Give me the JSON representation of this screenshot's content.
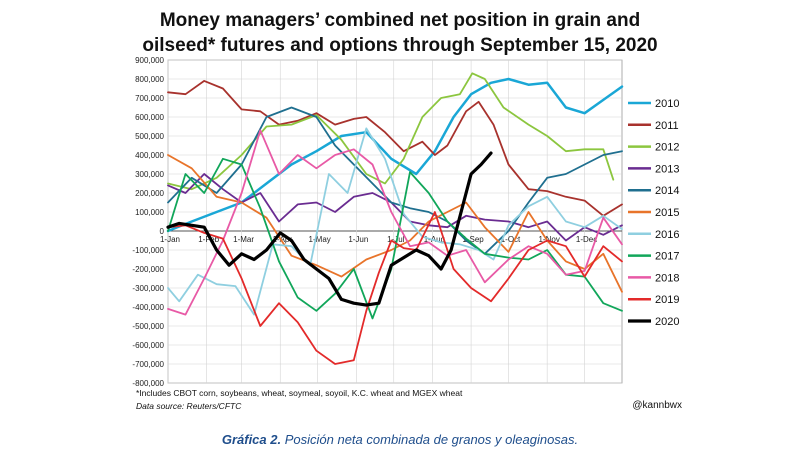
{
  "chart_data": {
    "type": "line",
    "title": [
      "Money managers’ combined net position in grain and",
      "oilseed* futures and options through September 15, 2020"
    ],
    "xlabel": "",
    "ylabel": "",
    "x_ticks": [
      "1-Jan",
      "1-Feb",
      "1-Mar",
      "1-Apr",
      "1-May",
      "1-Jun",
      "1-Jul",
      "1-Aug",
      "1-Sep",
      "1-Oct",
      "1-Nov",
      "1-Dec"
    ],
    "x_tick_days": [
      1,
      32,
      60,
      91,
      121,
      152,
      182,
      213,
      244,
      274,
      305,
      335
    ],
    "y_ticks": [
      "900,000",
      "800,000",
      "700,000",
      "600,000",
      "500,000",
      "400,000",
      "300,000",
      "200,000",
      "100,000",
      "0",
      "-100,000",
      "-200,000",
      "-300,000",
      "-400,000",
      "-500,000",
      "-600,000",
      "-700,000",
      "-800,000"
    ],
    "ylim": [
      -800000,
      900000
    ],
    "xlim": [
      1,
      365
    ],
    "legend_position": "right",
    "series": [
      {
        "name": "2010",
        "color": "#1aa7d6",
        "width": 2.5,
        "x": [
          1,
          20,
          40,
          60,
          80,
          100,
          120,
          140,
          160,
          180,
          200,
          215,
          230,
          244,
          260,
          274,
          290,
          305,
          320,
          335,
          350,
          365
        ],
        "y": [
          0,
          50000,
          100000,
          150000,
          250000,
          350000,
          420000,
          500000,
          520000,
          380000,
          300000,
          420000,
          600000,
          720000,
          780000,
          800000,
          770000,
          780000,
          650000,
          620000,
          690000,
          760000
        ]
      },
      {
        "name": "2011",
        "color": "#a8322d",
        "width": 1.8,
        "x": [
          1,
          15,
          30,
          45,
          60,
          75,
          90,
          105,
          120,
          135,
          150,
          160,
          175,
          190,
          205,
          215,
          225,
          240,
          250,
          262,
          274,
          290,
          305,
          320,
          335,
          350,
          365
        ],
        "y": [
          730000,
          720000,
          790000,
          750000,
          640000,
          630000,
          560000,
          580000,
          620000,
          560000,
          590000,
          600000,
          520000,
          420000,
          470000,
          400000,
          450000,
          630000,
          680000,
          560000,
          350000,
          220000,
          210000,
          180000,
          160000,
          80000,
          140000
        ]
      },
      {
        "name": "2012",
        "color": "#8cc63f",
        "width": 1.8,
        "x": [
          1,
          20,
          40,
          60,
          80,
          100,
          120,
          140,
          160,
          175,
          190,
          205,
          220,
          235,
          245,
          255,
          270,
          290,
          305,
          320,
          335,
          350,
          358
        ],
        "y": [
          250000,
          220000,
          280000,
          400000,
          550000,
          560000,
          610000,
          480000,
          300000,
          250000,
          380000,
          600000,
          700000,
          720000,
          830000,
          800000,
          650000,
          560000,
          500000,
          420000,
          430000,
          430000,
          270000
        ]
      },
      {
        "name": "2013",
        "color": "#6a2c91",
        "width": 1.8,
        "x": [
          1,
          15,
          30,
          45,
          60,
          75,
          90,
          105,
          120,
          135,
          150,
          165,
          180,
          195,
          210,
          225,
          240,
          255,
          274,
          290,
          305,
          320,
          335,
          350,
          365
        ],
        "y": [
          240000,
          200000,
          300000,
          220000,
          150000,
          200000,
          50000,
          140000,
          150000,
          100000,
          180000,
          200000,
          150000,
          50000,
          30000,
          20000,
          80000,
          60000,
          50000,
          20000,
          50000,
          -50000,
          20000,
          -20000,
          30000
        ]
      },
      {
        "name": "2014",
        "color": "#1f6f8f",
        "width": 1.8,
        "x": [
          1,
          20,
          40,
          60,
          80,
          100,
          120,
          135,
          150,
          165,
          180,
          195,
          210,
          225,
          240,
          255,
          274,
          290,
          305,
          320,
          335,
          350,
          365
        ],
        "y": [
          150000,
          280000,
          200000,
          350000,
          600000,
          650000,
          600000,
          450000,
          350000,
          250000,
          150000,
          120000,
          100000,
          50000,
          -50000,
          -120000,
          0,
          150000,
          280000,
          300000,
          350000,
          400000,
          420000
        ]
      },
      {
        "name": "2015",
        "color": "#e8742a",
        "width": 1.8,
        "x": [
          1,
          20,
          40,
          60,
          80,
          100,
          120,
          140,
          160,
          180,
          195,
          210,
          225,
          240,
          255,
          274,
          290,
          305,
          320,
          335,
          350,
          365
        ],
        "y": [
          400000,
          330000,
          180000,
          150000,
          70000,
          -130000,
          -180000,
          -240000,
          -150000,
          -100000,
          -50000,
          50000,
          100000,
          150000,
          20000,
          -110000,
          100000,
          -50000,
          -160000,
          -200000,
          -120000,
          -320000
        ]
      },
      {
        "name": "2016",
        "color": "#8fcfe0",
        "width": 1.8,
        "x": [
          1,
          10,
          25,
          40,
          55,
          70,
          85,
          100,
          115,
          130,
          145,
          160,
          175,
          190,
          205,
          220,
          235,
          250,
          262,
          274,
          290,
          305,
          320,
          335,
          350,
          365
        ],
        "y": [
          -300000,
          -370000,
          -230000,
          -280000,
          -290000,
          -440000,
          -70000,
          -80000,
          -180000,
          300000,
          200000,
          540000,
          380000,
          90000,
          -30000,
          -60000,
          -70000,
          -100000,
          -150000,
          30000,
          130000,
          180000,
          50000,
          20000,
          80000,
          10000
        ]
      },
      {
        "name": "2017",
        "color": "#11a65a",
        "width": 1.8,
        "x": [
          1,
          15,
          30,
          45,
          60,
          75,
          90,
          105,
          120,
          135,
          150,
          165,
          180,
          195,
          210,
          225,
          240,
          255,
          274,
          290,
          305,
          320,
          335,
          350,
          365
        ],
        "y": [
          0,
          300000,
          200000,
          380000,
          350000,
          120000,
          -160000,
          -350000,
          -420000,
          -330000,
          -200000,
          -460000,
          -200000,
          310000,
          200000,
          50000,
          -40000,
          -120000,
          -140000,
          -150000,
          -100000,
          -230000,
          -240000,
          -380000,
          -420000
        ]
      },
      {
        "name": "2018",
        "color": "#e85aa6",
        "width": 1.8,
        "x": [
          1,
          15,
          30,
          45,
          60,
          75,
          90,
          105,
          120,
          135,
          150,
          165,
          180,
          195,
          210,
          225,
          240,
          255,
          274,
          290,
          305,
          320,
          335,
          350,
          365
        ],
        "y": [
          -410000,
          -440000,
          -250000,
          -50000,
          200000,
          530000,
          300000,
          400000,
          330000,
          400000,
          430000,
          350000,
          100000,
          -80000,
          -60000,
          -130000,
          -100000,
          -270000,
          -150000,
          -80000,
          -120000,
          -230000,
          -210000,
          70000,
          -70000
        ]
      },
      {
        "name": "2019",
        "color": "#e32a2a",
        "width": 1.8,
        "x": [
          1,
          15,
          30,
          45,
          60,
          75,
          90,
          105,
          120,
          135,
          150,
          160,
          170,
          180,
          190,
          200,
          215,
          230,
          244,
          260,
          274,
          290,
          305,
          320,
          335,
          350,
          365
        ],
        "y": [
          20000,
          30000,
          -10000,
          -40000,
          -250000,
          -500000,
          -380000,
          -480000,
          -630000,
          -700000,
          -680000,
          -420000,
          -220000,
          -50000,
          -90000,
          -100000,
          100000,
          -200000,
          -300000,
          -370000,
          -250000,
          -100000,
          -50000,
          -80000,
          -240000,
          -80000,
          -160000
        ]
      },
      {
        "name": "2020",
        "color": "#000000",
        "width": 3.2,
        "x": [
          1,
          10,
          20,
          30,
          40,
          50,
          60,
          70,
          80,
          91,
          100,
          110,
          120,
          130,
          140,
          150,
          160,
          170,
          180,
          190,
          200,
          210,
          220,
          228,
          236,
          244,
          252,
          260
        ],
        "y": [
          20000,
          40000,
          30000,
          20000,
          -100000,
          -180000,
          -120000,
          -150000,
          -100000,
          -10000,
          -50000,
          -150000,
          -200000,
          -250000,
          -360000,
          -380000,
          -390000,
          -380000,
          -180000,
          -140000,
          -100000,
          -130000,
          -200000,
          -100000,
          100000,
          300000,
          350000,
          410000
        ]
      }
    ],
    "footnote": "*Includes CBOT corn, soybeans, wheat, soymeal, soyoil, K.C. wheat and MGEX wheat",
    "source": "Data source: Reuters/CFTC",
    "credit": "@kannbwx"
  },
  "caption": {
    "label": "Gráfica 2.",
    "text": " Posición neta combinada de granos y oleaginosas."
  }
}
